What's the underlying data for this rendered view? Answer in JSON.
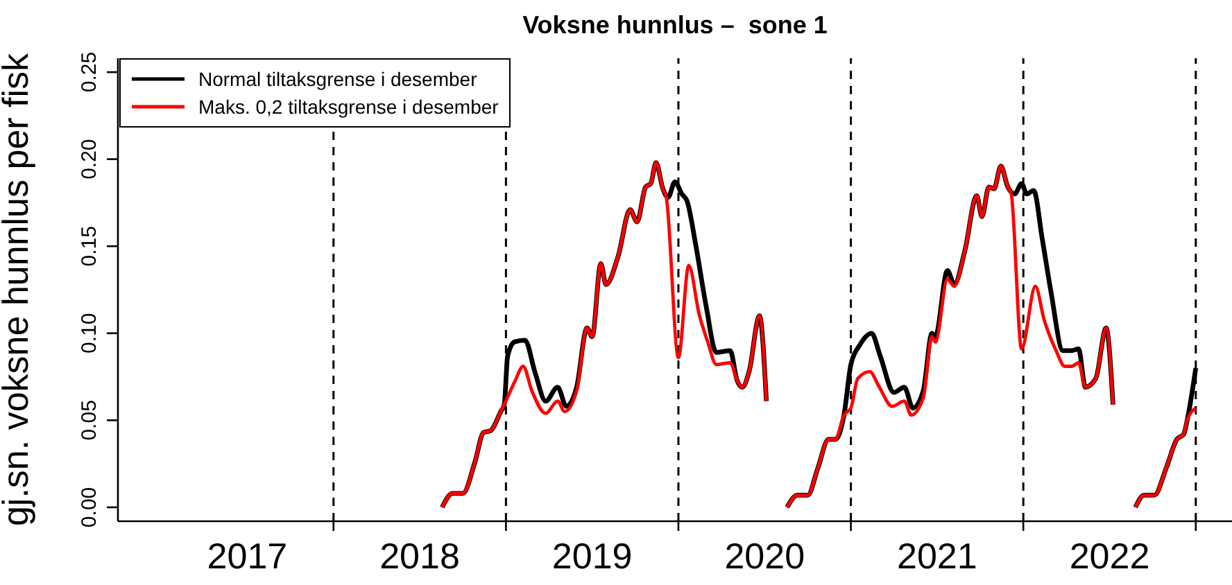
{
  "chart_data": {
    "type": "line",
    "title": "Voksne hunnlus –  sone 1",
    "ylabel": "gj.sn. voksne hunnlus per fisk",
    "xlim": [
      2016.75,
      2023.21
    ],
    "ylim": [
      -0.008,
      0.258
    ],
    "xticks": [
      {
        "value": 2017.5,
        "label": "2017"
      },
      {
        "value": 2018.5,
        "label": "2018"
      },
      {
        "value": 2019.5,
        "label": "2019"
      },
      {
        "value": 2020.5,
        "label": "2020"
      },
      {
        "value": 2021.5,
        "label": "2021"
      },
      {
        "value": 2022.5,
        "label": "2022"
      },
      {
        "value": 2018,
        "label": null
      },
      {
        "value": 2019,
        "label": null
      },
      {
        "value": 2020,
        "label": null
      },
      {
        "value": 2021,
        "label": null
      },
      {
        "value": 2022,
        "label": null
      },
      {
        "value": 2023,
        "label": null
      }
    ],
    "yticks": [
      {
        "value": 0,
        "label": "0.00"
      },
      {
        "value": 0.05,
        "label": "0.05"
      },
      {
        "value": 0.1,
        "label": "0.10"
      },
      {
        "value": 0.15,
        "label": "0.15"
      },
      {
        "value": 0.2,
        "label": "0.20"
      },
      {
        "value": 0.25,
        "label": "0.25"
      }
    ],
    "grid": false,
    "legend": "top left",
    "line_style": "solid",
    "marker": "none",
    "ref_lines": [
      {
        "axis": "x",
        "value": 2018,
        "line_style": "dashed",
        "color": "#000000"
      },
      {
        "axis": "x",
        "value": 2019,
        "line_style": "dashed",
        "color": "#000000"
      },
      {
        "axis": "x",
        "value": 2020,
        "line_style": "dashed",
        "color": "#000000"
      },
      {
        "axis": "x",
        "value": 2021,
        "line_style": "dashed",
        "color": "#000000"
      },
      {
        "axis": "x",
        "value": 2022,
        "line_style": "dashed",
        "color": "#000000"
      },
      {
        "axis": "x",
        "value": 2023,
        "line_style": "dashed",
        "color": "#000000"
      }
    ],
    "series": [
      {
        "name": "Normal tiltaksgrense i desember",
        "color": "#000000",
        "x": [
          2018.63,
          2018.69,
          2018.75,
          2018.82,
          2018.87,
          2018.91,
          2018.97,
          2018.99,
          2019.01,
          2019.05,
          2019.11,
          2019.17,
          2019.23,
          2019.3,
          2019.35,
          2019.41,
          2019.47,
          2019.5,
          2019.55,
          2019.58,
          2019.65,
          2019.72,
          2019.76,
          2019.81,
          2019.84,
          2019.87,
          2019.91,
          2019.94,
          2019.98,
          2020.02,
          2020.05,
          2020.1,
          2020.16,
          2020.22,
          2020.3,
          2020.34,
          2020.37,
          2020.41,
          2020.47,
          2020.51,
          2020.57,
          2020.63,
          2020.69,
          2020.75,
          2020.81,
          2020.87,
          2020.91,
          2020.96,
          2021.0,
          2021.05,
          2021.12,
          2021.17,
          2021.25,
          2021.31,
          2021.36,
          2021.42,
          2021.47,
          2021.49,
          2021.56,
          2021.6,
          2021.66,
          2021.73,
          2021.76,
          2021.8,
          2021.83,
          2021.87,
          2021.91,
          2021.95,
          2021.99,
          2022.02,
          2022.06,
          2022.11,
          2022.16,
          2022.23,
          2022.28,
          2022.32,
          2022.36,
          2022.42,
          2022.48,
          2022.52,
          2022.58,
          2022.65,
          2022.7,
          2022.76,
          2022.83,
          2022.89,
          2022.93,
          2022.95,
          2023.0
        ],
        "values": [
          0.0,
          0.008,
          0.008,
          0.026,
          0.043,
          0.044,
          0.055,
          0.059,
          0.087,
          0.095,
          0.096,
          0.077,
          0.061,
          0.069,
          0.058,
          0.069,
          0.103,
          0.098,
          0.14,
          0.128,
          0.144,
          0.171,
          0.164,
          0.184,
          0.186,
          0.198,
          0.183,
          0.178,
          0.187,
          0.18,
          0.176,
          0.151,
          0.116,
          0.089,
          0.09,
          0.073,
          0.069,
          0.078,
          0.11,
          0.061,
          null,
          0.0,
          0.007,
          0.007,
          0.023,
          0.039,
          0.039,
          0.053,
          0.082,
          0.093,
          0.1,
          0.087,
          0.066,
          0.069,
          0.057,
          0.067,
          0.1,
          0.098,
          0.136,
          0.128,
          0.147,
          0.179,
          0.167,
          0.184,
          0.183,
          0.196,
          0.184,
          0.18,
          0.186,
          0.18,
          0.182,
          0.154,
          0.124,
          0.09,
          0.09,
          0.091,
          0.069,
          0.074,
          0.103,
          0.059,
          null,
          0.0,
          0.007,
          0.007,
          0.023,
          0.039,
          0.042,
          0.05,
          0.08
        ]
      },
      {
        "name": "Maks. 0,2 tiltaksgrense i desember",
        "color": "#ff0000",
        "x": [
          2018.63,
          2018.69,
          2018.75,
          2018.82,
          2018.87,
          2018.91,
          2018.97,
          2018.99,
          2019.05,
          2019.1,
          2019.15,
          2019.23,
          2019.3,
          2019.34,
          2019.41,
          2019.47,
          2019.5,
          2019.55,
          2019.58,
          2019.65,
          2019.72,
          2019.76,
          2019.81,
          2019.84,
          2019.87,
          2019.91,
          2019.93,
          2020.0,
          2020.06,
          2020.12,
          2020.17,
          2020.22,
          2020.3,
          2020.34,
          2020.37,
          2020.41,
          2020.47,
          2020.51,
          2020.57,
          2020.63,
          2020.69,
          2020.75,
          2020.81,
          2020.87,
          2020.91,
          2020.96,
          2021.0,
          2021.04,
          2021.11,
          2021.16,
          2021.24,
          2021.31,
          2021.35,
          2021.42,
          2021.47,
          2021.49,
          2021.56,
          2021.6,
          2021.66,
          2021.73,
          2021.76,
          2021.8,
          2021.83,
          2021.87,
          2021.91,
          2021.93,
          2021.99,
          2022.07,
          2022.12,
          2022.19,
          2022.24,
          2022.28,
          2022.32,
          2022.36,
          2022.42,
          2022.48,
          2022.52,
          2022.58,
          2022.65,
          2022.7,
          2022.76,
          2022.83,
          2022.89,
          2022.93,
          2022.95,
          2023.0
        ],
        "values": [
          0.0,
          0.008,
          0.008,
          0.026,
          0.043,
          0.044,
          0.055,
          0.059,
          0.072,
          0.081,
          0.067,
          0.054,
          0.061,
          0.055,
          0.067,
          0.103,
          0.098,
          0.14,
          0.128,
          0.144,
          0.171,
          0.164,
          0.184,
          0.186,
          0.198,
          0.183,
          0.178,
          0.086,
          0.139,
          0.111,
          0.095,
          0.082,
          0.083,
          0.073,
          0.069,
          0.078,
          0.11,
          0.061,
          null,
          0.0,
          0.007,
          0.007,
          0.023,
          0.039,
          0.039,
          0.053,
          0.057,
          0.074,
          0.078,
          0.07,
          0.058,
          0.061,
          0.053,
          0.063,
          0.098,
          0.095,
          0.131,
          0.127,
          0.147,
          0.179,
          0.167,
          0.184,
          0.183,
          0.196,
          0.184,
          0.18,
          0.091,
          0.127,
          0.108,
          0.09,
          0.081,
          0.081,
          0.083,
          0.069,
          0.074,
          0.103,
          0.059,
          null,
          0.0,
          0.007,
          0.007,
          0.023,
          0.039,
          0.042,
          0.05,
          0.057
        ]
      }
    ]
  }
}
